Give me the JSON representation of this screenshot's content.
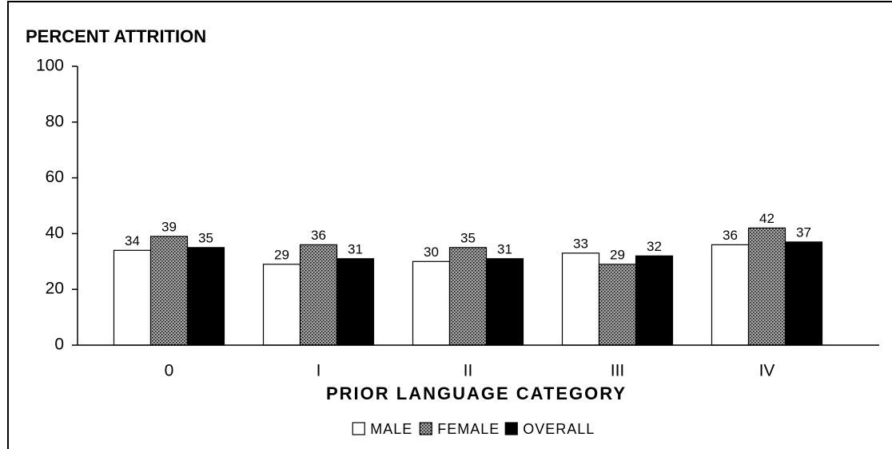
{
  "chart_data": {
    "type": "bar",
    "title": "PERCENT ATTRITION",
    "x_label": "PRIOR LANGUAGE CATEGORY",
    "categories": [
      "0",
      "I",
      "II",
      "III",
      "IV"
    ],
    "series": [
      {
        "name": "MALE",
        "color": "#ffffff",
        "values": [
          34,
          29,
          30,
          33,
          36
        ]
      },
      {
        "name": "FEMALE",
        "color": "#a8a8a8",
        "values": [
          39,
          36,
          35,
          29,
          42
        ]
      },
      {
        "name": "OVERALL",
        "color": "#000000",
        "values": [
          35,
          31,
          31,
          32,
          37
        ]
      }
    ],
    "ylim": [
      0,
      100
    ],
    "yticks": [
      0,
      20,
      40,
      60,
      80,
      100
    ],
    "grid": false,
    "legend": "bottom"
  }
}
